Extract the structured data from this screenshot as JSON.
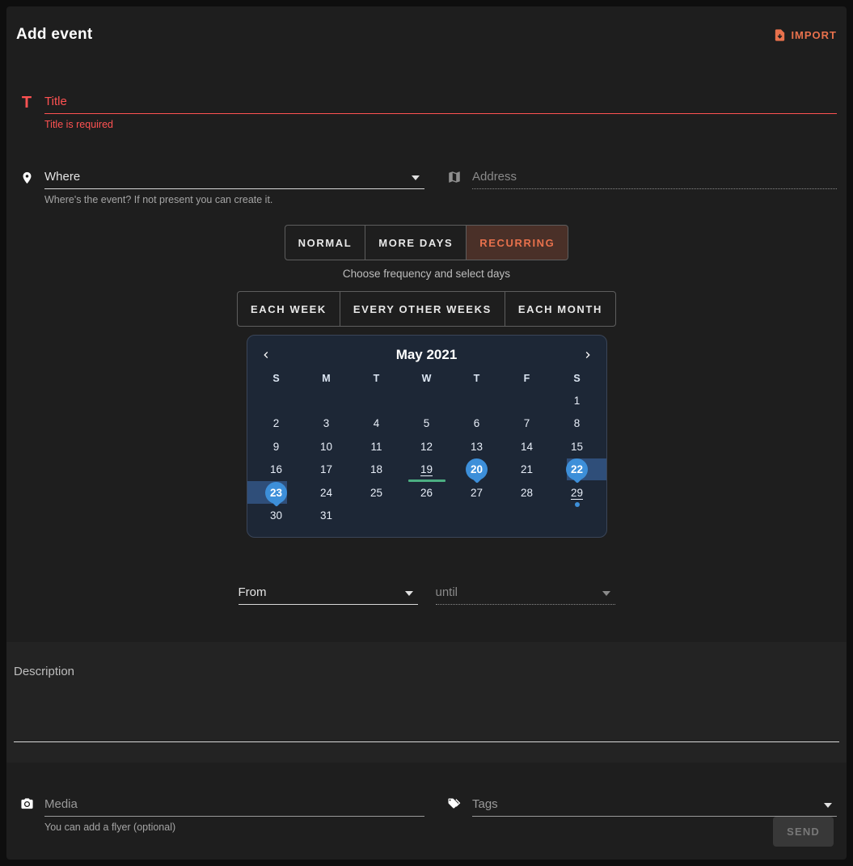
{
  "colors": {
    "page_bg": "#0e0e0e",
    "card_bg": "#1e1e1e",
    "section_bg": "#232323",
    "error_red": "#ff5252",
    "accent_orange": "#e8714c",
    "calendar_bg": "#1d2736",
    "calendar_border": "#3a4558",
    "selection_blue": "#3d8fd9",
    "range_blue": "#2f4e79",
    "today_green": "#4caf82",
    "muted_text": "#9e9e9e"
  },
  "header": {
    "title": "Add event",
    "import_label": "IMPORT"
  },
  "title_field": {
    "placeholder": "Title",
    "error": "Title is required"
  },
  "where_field": {
    "placeholder": "Where",
    "hint": "Where's the event? If not present you can create it."
  },
  "address_field": {
    "placeholder": "Address"
  },
  "type_toggle": {
    "options": [
      "NORMAL",
      "MORE DAYS",
      "RECURRING"
    ],
    "selected": "RECURRING",
    "hint": "Choose frequency and select days"
  },
  "frequency_toggle": {
    "options": [
      "EACH WEEK",
      "EVERY OTHER WEEKS",
      "EACH MONTH"
    ]
  },
  "calendar": {
    "month_label": "May 2021",
    "day_headers": [
      "S",
      "M",
      "T",
      "W",
      "T",
      "F",
      "S"
    ],
    "weeks": [
      [
        "",
        "",
        "",
        "",
        "",
        "",
        "1"
      ],
      [
        "2",
        "3",
        "4",
        "5",
        "6",
        "7",
        "8"
      ],
      [
        "9",
        "10",
        "11",
        "12",
        "13",
        "14",
        "15"
      ],
      [
        "16",
        "17",
        "18",
        "19",
        "20",
        "21",
        "22"
      ],
      [
        "23",
        "24",
        "25",
        "26",
        "27",
        "28",
        "29"
      ],
      [
        "30",
        "31",
        "",
        "",
        "",
        "",
        ""
      ]
    ],
    "balloon_days": [
      "20",
      "22",
      "23"
    ],
    "band_right_day": "22",
    "band_left_day": "23",
    "green_bar_day": "19",
    "underline_days": [
      "19",
      "29"
    ],
    "dot_day": "29"
  },
  "time_fields": {
    "from_placeholder": "From",
    "until_placeholder": "until"
  },
  "description_field": {
    "placeholder": "Description"
  },
  "media_field": {
    "placeholder": "Media",
    "hint": "You can add a flyer (optional)"
  },
  "tags_field": {
    "placeholder": "Tags"
  },
  "send_button": {
    "label": "SEND"
  }
}
